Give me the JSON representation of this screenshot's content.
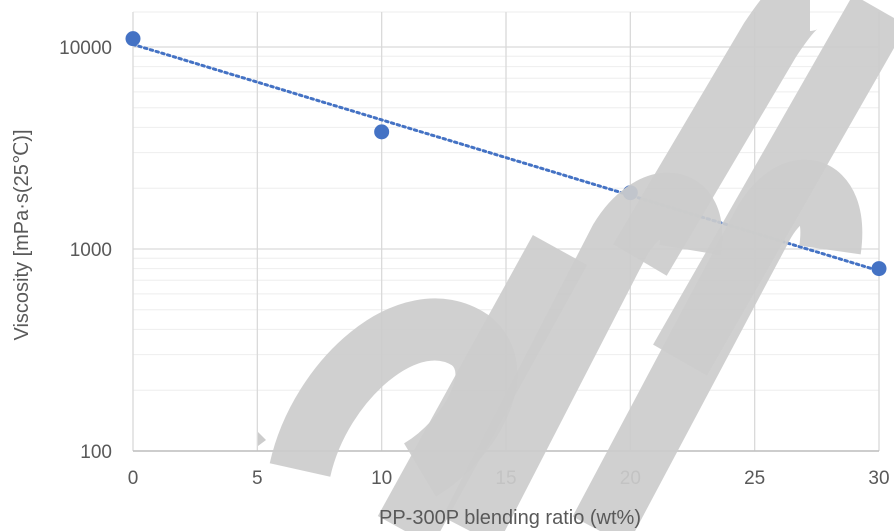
{
  "chart_data": {
    "type": "scatter",
    "title": "",
    "xlabel": "PP-300P blending ratio (wt%)",
    "ylabel": "Viscosity [mPa·s(25℃)]",
    "x_ticks": [
      "0",
      "5",
      "10",
      "15",
      "20",
      "25",
      "30"
    ],
    "y_ticks": [
      "100",
      "1000",
      "10000"
    ],
    "xlim": [
      0,
      30
    ],
    "ylim": [
      100,
      15000
    ],
    "y_scale": "log",
    "grid": true,
    "legend": "none",
    "series": [
      {
        "points": [
          {
            "x": 0,
            "y": 11000
          },
          {
            "x": 10,
            "y": 3800
          },
          {
            "x": 20,
            "y": 1900
          },
          {
            "x": 30,
            "y": 800
          }
        ],
        "color": "#4472c4"
      }
    ],
    "trendline": {
      "type": "exponential",
      "style": "dotted",
      "color": "#4472c4",
      "points": [
        {
          "x": 0,
          "y": 10300
        },
        {
          "x": 30,
          "y": 780
        }
      ]
    },
    "watermark": "Sample",
    "watermark_color": "#cccccc"
  }
}
